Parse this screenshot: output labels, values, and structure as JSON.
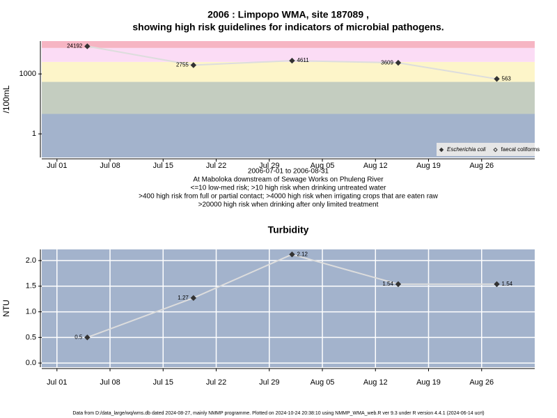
{
  "chart_data": [
    {
      "type": "line",
      "title": [
        "2006 : Limpopo WMA, site 187089 ,",
        "showing high risk guidelines for indicators of microbial pathogens."
      ],
      "notes": [
        "2006-07-01 to 2006-08-31",
        "At Maboloka downstream of Sewage Works on Phuleng River",
        "<=10 low-med risk; >10 high risk when drinking untreated water",
        ">400 high risk from full or partial contact; >4000 high risk when irrigating crops that are eaten raw",
        ">20000 high risk when drinking after only limited treatment"
      ],
      "y_label": "/100mL",
      "x": [
        "Jul 05",
        "Jul 19",
        "Aug 01",
        "Aug 15",
        "Aug 28"
      ],
      "xlim": [
        "Jun 29",
        "Sep 02"
      ],
      "xticks": [
        "Jul 01",
        "Jul 08",
        "Jul 15",
        "Jul 22",
        "Jul 29",
        "Aug 05",
        "Aug 12",
        "Aug 19",
        "Aug 26"
      ],
      "ylim": [
        0.066,
        44000
      ],
      "yticks": [
        1,
        1000
      ],
      "log_y": true,
      "band_limits": [
        10,
        400,
        4000,
        20000
      ],
      "band_colors": [
        "#a3b3cc",
        "#c4cdc0",
        "#fdf5c9",
        "#fbdcf5",
        "#f6b5c3"
      ],
      "line_color": "#dddddd",
      "legend": "bottom-right",
      "series": [
        {
          "name": "Escherichia coli",
          "name_style": "italic",
          "color": "#333333",
          "marker": "filled",
          "values": [
            24192,
            2755,
            4611,
            3609,
            563
          ]
        },
        {
          "name": "faecal coliforms",
          "color": "#333333",
          "marker": "open",
          "values": [
            null,
            null,
            null,
            null,
            null
          ]
        }
      ]
    },
    {
      "type": "line",
      "title": "Turbidity",
      "y_label": "NTU",
      "x": [
        "Jul 05",
        "Jul 19",
        "Aug 01",
        "Aug 15",
        "Aug 28"
      ],
      "xlim": [
        "Jun 29",
        "Sep 02"
      ],
      "xticks": [
        "Jul 01",
        "Jul 08",
        "Jul 15",
        "Jul 22",
        "Jul 29",
        "Aug 05",
        "Aug 12",
        "Aug 19",
        "Aug 26"
      ],
      "ylim": [
        -0.08,
        2.218
      ],
      "yticks": [
        {
          "value": 0,
          "label": "0.0"
        },
        0.5,
        {
          "value": 1,
          "label": "1.0"
        },
        1.5,
        {
          "value": 2,
          "label": "2.0"
        }
      ],
      "grid": true,
      "background": "#a3b3cc",
      "line_color": "#dddddd",
      "series": [
        {
          "color": "#333333",
          "marker": "filled",
          "values": [
            0.5,
            1.27,
            2.12,
            1.54,
            1.54
          ]
        }
      ]
    }
  ],
  "footer": "Data from D:/data_large/wq/wms.db dated 2024-08-27, mainly NMMP programme. Plotted on 2024-10-24 20:38:10 using NMMP_WMA_web.R ver 9.3 under R version 4.4.1 (2024-06-14 ucrt)"
}
